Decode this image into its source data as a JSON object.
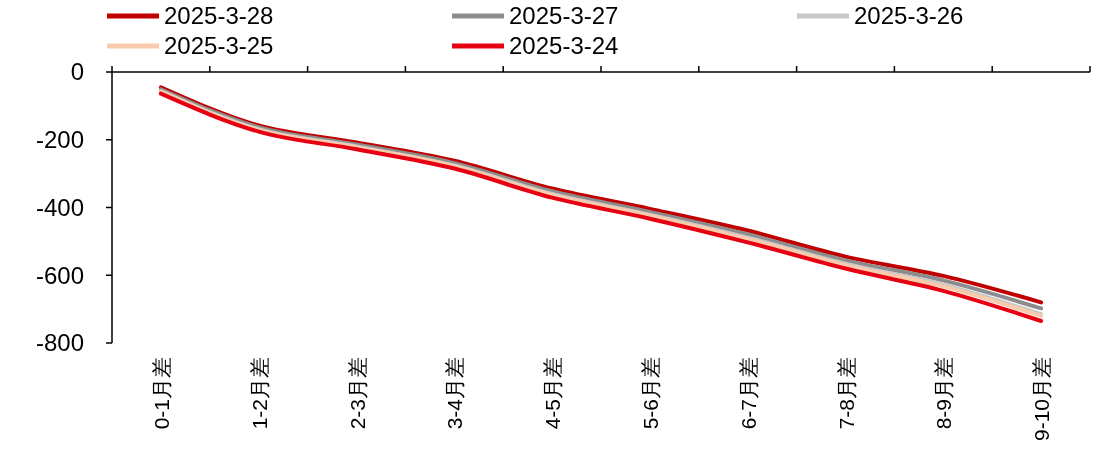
{
  "chart_data": {
    "type": "line",
    "categories": [
      "0-1月差",
      "1-2月差",
      "2-3月差",
      "3-4月差",
      "4-5月差",
      "5-6月差",
      "6-7月差",
      "7-8月差",
      "8-9月差",
      "9-10月差"
    ],
    "series": [
      {
        "name": "2025-3-28",
        "color": "#c00000",
        "values": [
          -45,
          -158,
          -208,
          -262,
          -344,
          -404,
          -468,
          -545,
          -602,
          -680
        ]
      },
      {
        "name": "2025-3-27",
        "color": "#8c8c8c",
        "values": [
          -51,
          -163,
          -214,
          -269,
          -352,
          -413,
          -479,
          -556,
          -615,
          -698
        ]
      },
      {
        "name": "2025-3-26",
        "color": "#c8c8c8",
        "values": [
          -56,
          -169,
          -220,
          -276,
          -360,
          -421,
          -489,
          -566,
          -628,
          -715
        ]
      },
      {
        "name": "2025-3-25",
        "color": "#f8cbad",
        "values": [
          -58,
          -171,
          -222,
          -278,
          -363,
          -424,
          -493,
          -570,
          -633,
          -720
        ]
      },
      {
        "name": "2025-3-24",
        "color": "#e60012",
        "values": [
          -64,
          -176,
          -228,
          -285,
          -371,
          -433,
          -503,
          -580,
          -646,
          -735
        ]
      }
    ],
    "ylim": [
      -800,
      0
    ],
    "yticks": [
      -800,
      -600,
      -400,
      -200,
      0
    ],
    "legend": "top",
    "grid": false,
    "line_style": "solid",
    "marker": "none"
  }
}
